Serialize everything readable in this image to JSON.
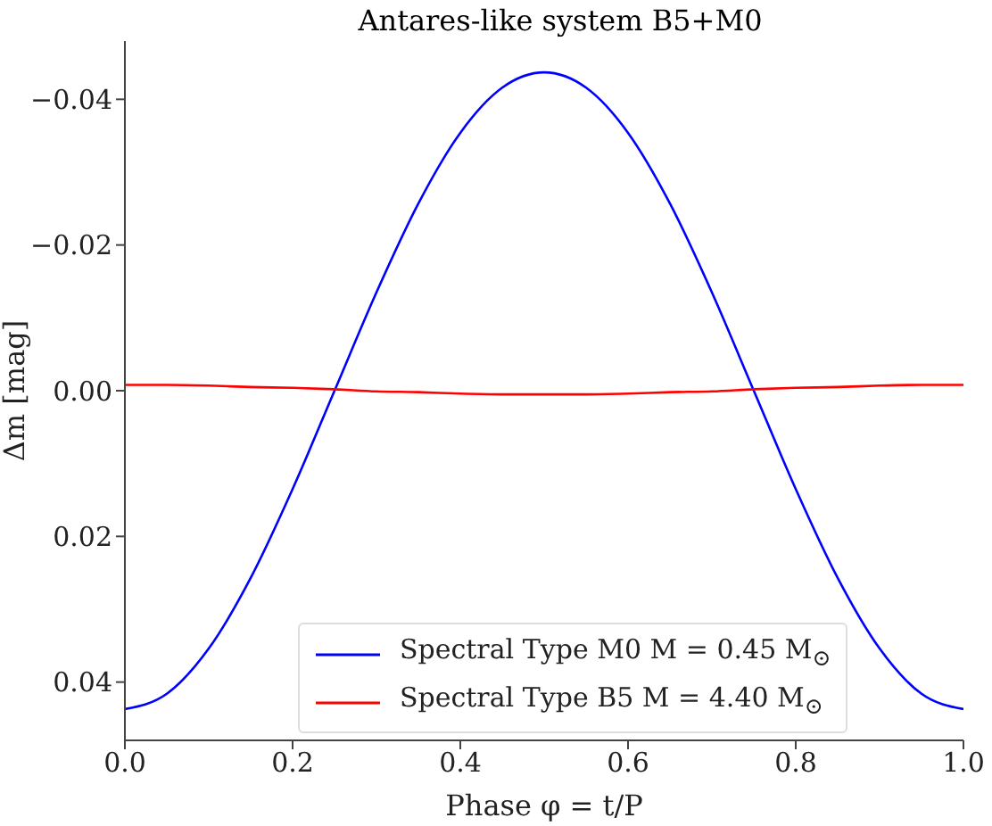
{
  "chart_data": {
    "type": "line",
    "title": "Antares-like system B5+M0",
    "xlabel": "Phase φ = t/P",
    "ylabel": "Δm [mag]",
    "x": [
      0,
      0.05,
      0.1,
      0.15,
      0.2,
      0.25,
      0.3,
      0.35,
      0.4,
      0.45,
      0.5,
      0.55,
      0.6,
      0.65,
      0.7,
      0.75,
      0.8,
      0.85,
      0.9,
      0.95,
      1
    ],
    "series": [
      {
        "name": "Spectral Type M0 M = 0.45 M$_{⊙}$",
        "color": "#0000ff",
        "values": [
          0.0437,
          0.0416,
          0.0354,
          0.0257,
          0.0135,
          0,
          -0.0135,
          -0.0257,
          -0.0354,
          -0.0416,
          -0.0437,
          -0.0416,
          -0.0354,
          -0.0257,
          -0.0135,
          0,
          0.0135,
          0.0257,
          0.0354,
          0.0416,
          0.0437
        ]
      },
      {
        "name": "Spectral Type B5 M = 4.40 M$_{⊙}$",
        "color": "#ff0000",
        "values": [
          -0.0008,
          -0.0008,
          -0.0007,
          -0.0005,
          -0.0004,
          -0.0002,
          0.0001,
          0.0002,
          0.0004,
          0.0005,
          0.0005,
          0.0005,
          0.0004,
          0.0002,
          0.0001,
          -0.0002,
          -0.0004,
          -0.0005,
          -0.0007,
          -0.0008,
          -0.0008
        ]
      }
    ],
    "xlim": [
      0,
      1
    ],
    "xticks": [
      {
        "value": 0,
        "label": "0.0"
      },
      {
        "value": 0.2,
        "label": "0.2"
      },
      {
        "value": 0.4,
        "label": "0.4"
      },
      {
        "value": 0.6,
        "label": "0.6"
      },
      {
        "value": 0.8,
        "label": "0.8"
      },
      {
        "value": 1,
        "label": "1.0"
      }
    ],
    "ylim": [
      0.048,
      -0.048
    ],
    "yticks": [
      {
        "value": -0.04,
        "label": "−0.04"
      },
      {
        "value": -0.02,
        "label": "−0.02"
      },
      {
        "value": 0,
        "label": "0.00"
      },
      {
        "value": 0.02,
        "label": "0.02"
      },
      {
        "value": 0.04,
        "label": "0.04"
      }
    ],
    "legend": "bottom",
    "grid": false,
    "marker": "none",
    "line_style": "solid"
  }
}
